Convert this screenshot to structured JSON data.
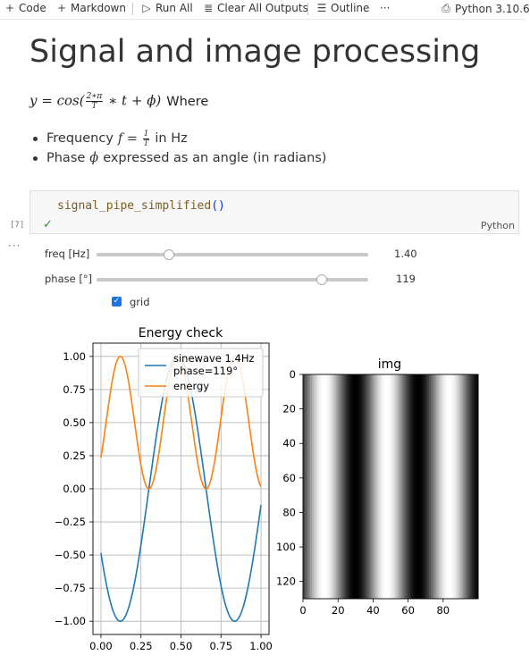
{
  "toolbar": {
    "code": "Code",
    "markdown": "Markdown",
    "run_all": "Run All",
    "clear_all": "Clear All Outputs",
    "outline": "Outline",
    "more": "···",
    "kernel": "Python 3.10.6"
  },
  "markdown": {
    "title": "Signal and image processing",
    "formula_suffix": "Where",
    "bullet1_prefix": "Frequency",
    "bullet1_suffix": "in Hz",
    "bullet2_prefix": "Phase",
    "bullet2_suffix": "expressed as an angle (in radians)"
  },
  "cell": {
    "func": "signal_pipe_simplified",
    "parens": "()",
    "exec_count": "[7]",
    "status": "✓",
    "language": "Python",
    "output_menu": "···"
  },
  "widgets": {
    "freq": {
      "label": "freq [Hz]",
      "value": "1.40",
      "min": 0.1,
      "max": 5.0,
      "current": 1.4
    },
    "phase": {
      "label": "phase [°]",
      "value": "119",
      "min": -180,
      "max": 180,
      "current": 119
    },
    "grid": {
      "label": "grid",
      "checked": true
    }
  },
  "colors": {
    "sine": "#1f77b4",
    "energy": "#ff7f0e",
    "accent": "#1a73e8"
  },
  "chart_data": [
    {
      "type": "line",
      "title": "Energy check",
      "xlim": [
        -0.05,
        1.05
      ],
      "ylim": [
        -1.1,
        1.1
      ],
      "xticks": [
        0.0,
        0.25,
        0.5,
        0.75,
        1.0
      ],
      "xtick_labels": [
        "0.00",
        "0.25",
        "0.50",
        "0.75",
        "1.00"
      ],
      "yticks": [
        1.0,
        0.75,
        0.5,
        0.25,
        0.0,
        -0.25,
        -0.5,
        -0.75,
        -1.0
      ],
      "ytick_labels": [
        "1.00",
        "0.75",
        "0.50",
        "0.25",
        "0.00",
        "−0.25",
        "−0.50",
        "−0.75",
        "−1.00"
      ],
      "grid": true,
      "legend_position": "top-right",
      "x_range": [
        0,
        1
      ],
      "series": [
        {
          "name": "sinewave 1.4Hz\nphase=119°",
          "name_line1": "sinewave 1.4Hz",
          "name_line2": "phase=119°",
          "formula": "cos(2*pi*f*t + phi)",
          "frequency": 1.4,
          "phase_deg": 119
        },
        {
          "name": "energy",
          "formula": "cos^2(2*pi*f*t + phi)",
          "frequency": 1.4,
          "phase_deg": 119
        }
      ]
    },
    {
      "type": "heatmap",
      "title": "img",
      "xlim": [
        0,
        100
      ],
      "ylim": [
        130,
        0
      ],
      "xticks": [
        0,
        20,
        40,
        60,
        80
      ],
      "yticks": [
        0,
        20,
        40,
        60,
        80,
        100,
        120
      ],
      "colormap": "gray",
      "columns_period": 71.4,
      "phase_deg": 119
    }
  ]
}
